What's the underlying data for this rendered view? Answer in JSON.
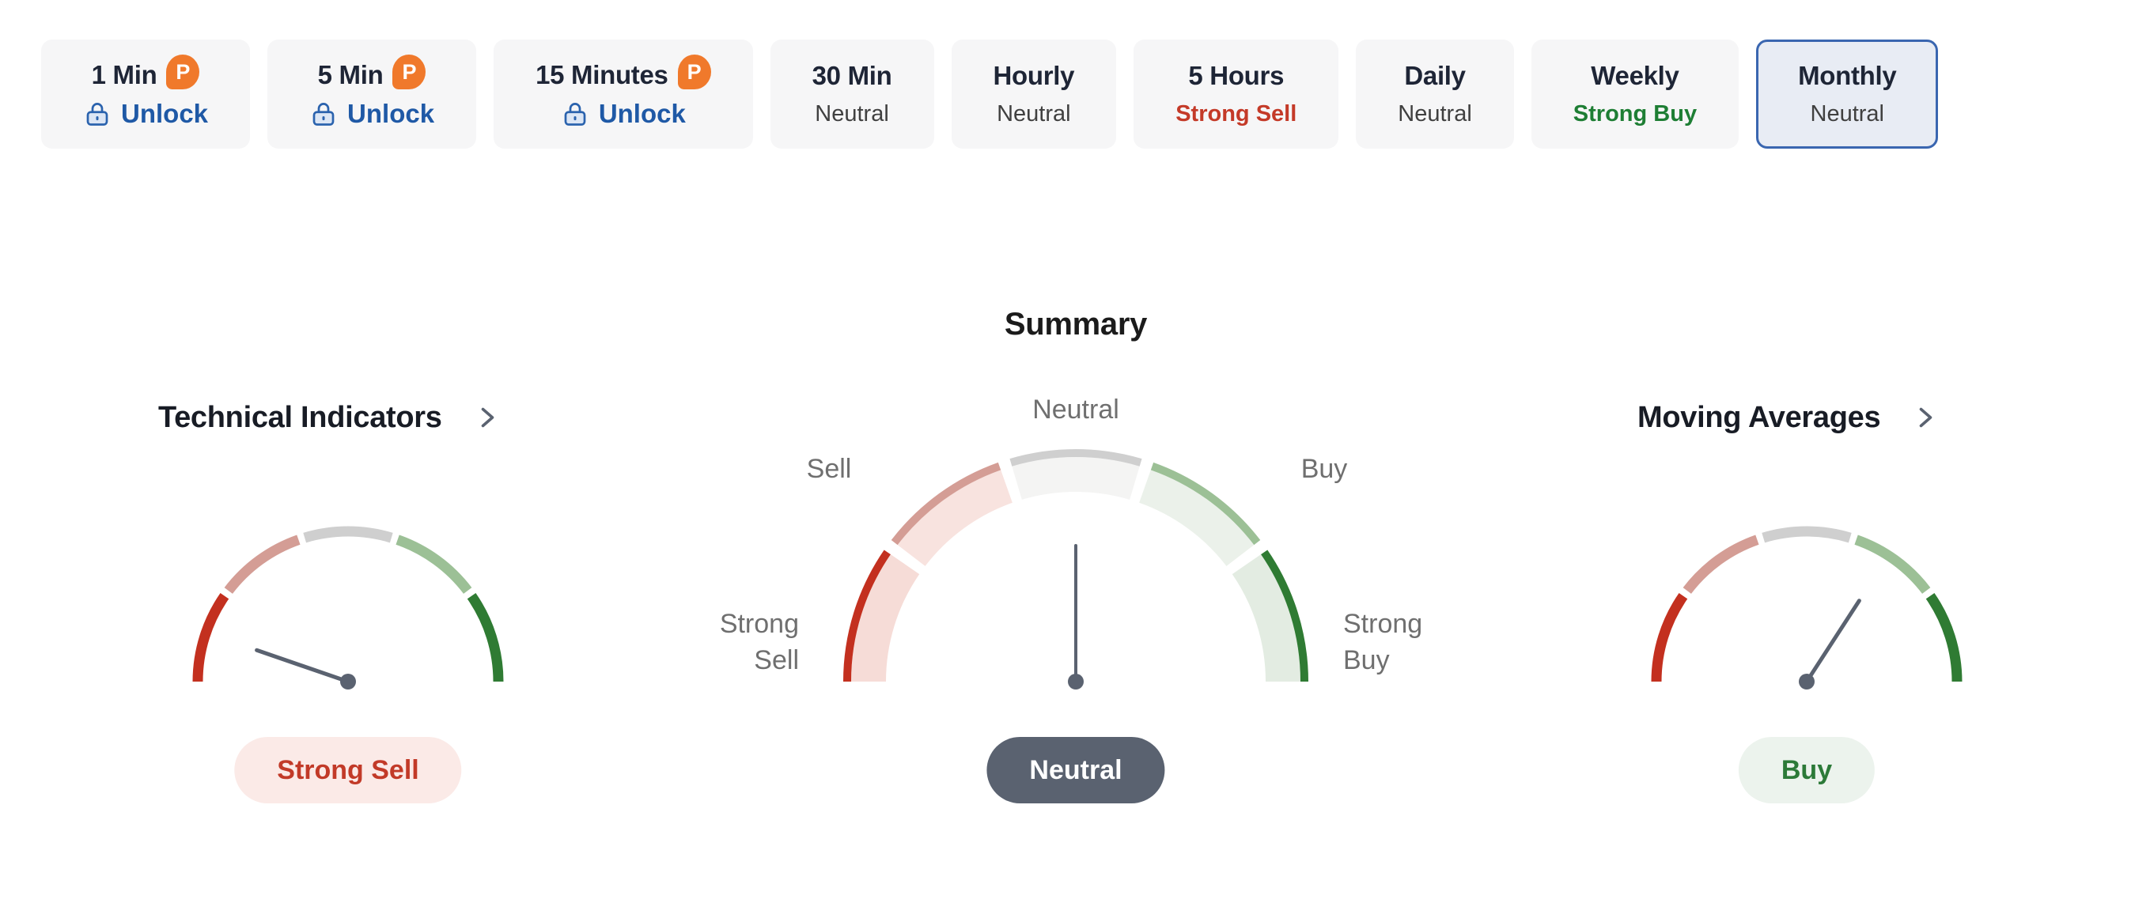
{
  "pro": {
    "badge_letter": "P"
  },
  "tabs": {
    "items": [
      {
        "label": "1 Min",
        "pro": true,
        "unlock_label": "Unlock"
      },
      {
        "label": "5 Min",
        "pro": true,
        "unlock_label": "Unlock"
      },
      {
        "label": "15 Minutes",
        "pro": true,
        "unlock_label": "Unlock"
      },
      {
        "label": "30 Min",
        "status": "Neutral",
        "status_type": "neutral"
      },
      {
        "label": "Hourly",
        "status": "Neutral",
        "status_type": "neutral"
      },
      {
        "label": "5 Hours",
        "status": "Strong Sell",
        "status_type": "sell"
      },
      {
        "label": "Daily",
        "status": "Neutral",
        "status_type": "neutral"
      },
      {
        "label": "Weekly",
        "status": "Strong Buy",
        "status_type": "buy"
      },
      {
        "label": "Monthly",
        "status": "Neutral",
        "status_type": "neutral",
        "selected": true
      }
    ]
  },
  "summary": {
    "title": "Summary"
  },
  "sections": {
    "technical_indicators": {
      "title": "Technical Indicators"
    },
    "moving_averages": {
      "title": "Moving Averages"
    }
  },
  "gauge_labels": {
    "top": "Neutral",
    "left": "Sell",
    "right": "Buy",
    "far_left": [
      "Strong",
      "Sell"
    ],
    "far_right": [
      "Strong",
      "Buy"
    ]
  },
  "gauges": {
    "scale": [
      "Strong Sell",
      "Sell",
      "Neutral",
      "Buy",
      "Strong Buy"
    ],
    "angle_convention": "degrees, 180 = far left (Strong Sell), 90 = straight up (Neutral), 0 = far right (Strong Buy)",
    "summary": {
      "verdict": "Neutral",
      "needle_angle_deg": 90
    },
    "technical_indicators": {
      "verdict": "Strong Sell",
      "needle_angle_deg": 161
    },
    "moving_averages": {
      "verdict": "Buy",
      "needle_angle_deg": 57
    }
  },
  "colors": {
    "pro_orange": "#f0792b",
    "unlock_blue": "#1f59a6",
    "lock_fill": "#dce6f5",
    "lock_stroke": "#2b63ae",
    "tab_bg": "#f6f6f7",
    "tab_selected_bg": "#e8ecf4",
    "tab_selected_border": "#3a66b0",
    "tab_label": "#1e2536",
    "status_neutral": "#404040",
    "status_sell": "#c43a28",
    "status_buy": "#1e7e34",
    "label_gray": "#6f6f6f",
    "needle": "#5a6270",
    "chevron": "#5a6270",
    "seg_strong_sell": "#c3301f",
    "seg_sell": "#d49d95",
    "seg_neutral": "#cfcfcf",
    "seg_buy": "#9cc096",
    "seg_strong_buy": "#2f7b33",
    "band_strong_sell": "#f6dcd7",
    "band_sell": "#f8e3df",
    "band_neutral": "#f4f4f3",
    "band_buy": "#ebf1ea",
    "band_strong_buy": "#e3ece2",
    "pill_sell_bg": "#fbeae7",
    "pill_sell_text": "#c23a28",
    "pill_neutral_bg": "#5a6270",
    "pill_neutral_text": "#ffffff",
    "pill_buy_bg": "#ecf3ed",
    "pill_buy_text": "#2c7a38"
  }
}
